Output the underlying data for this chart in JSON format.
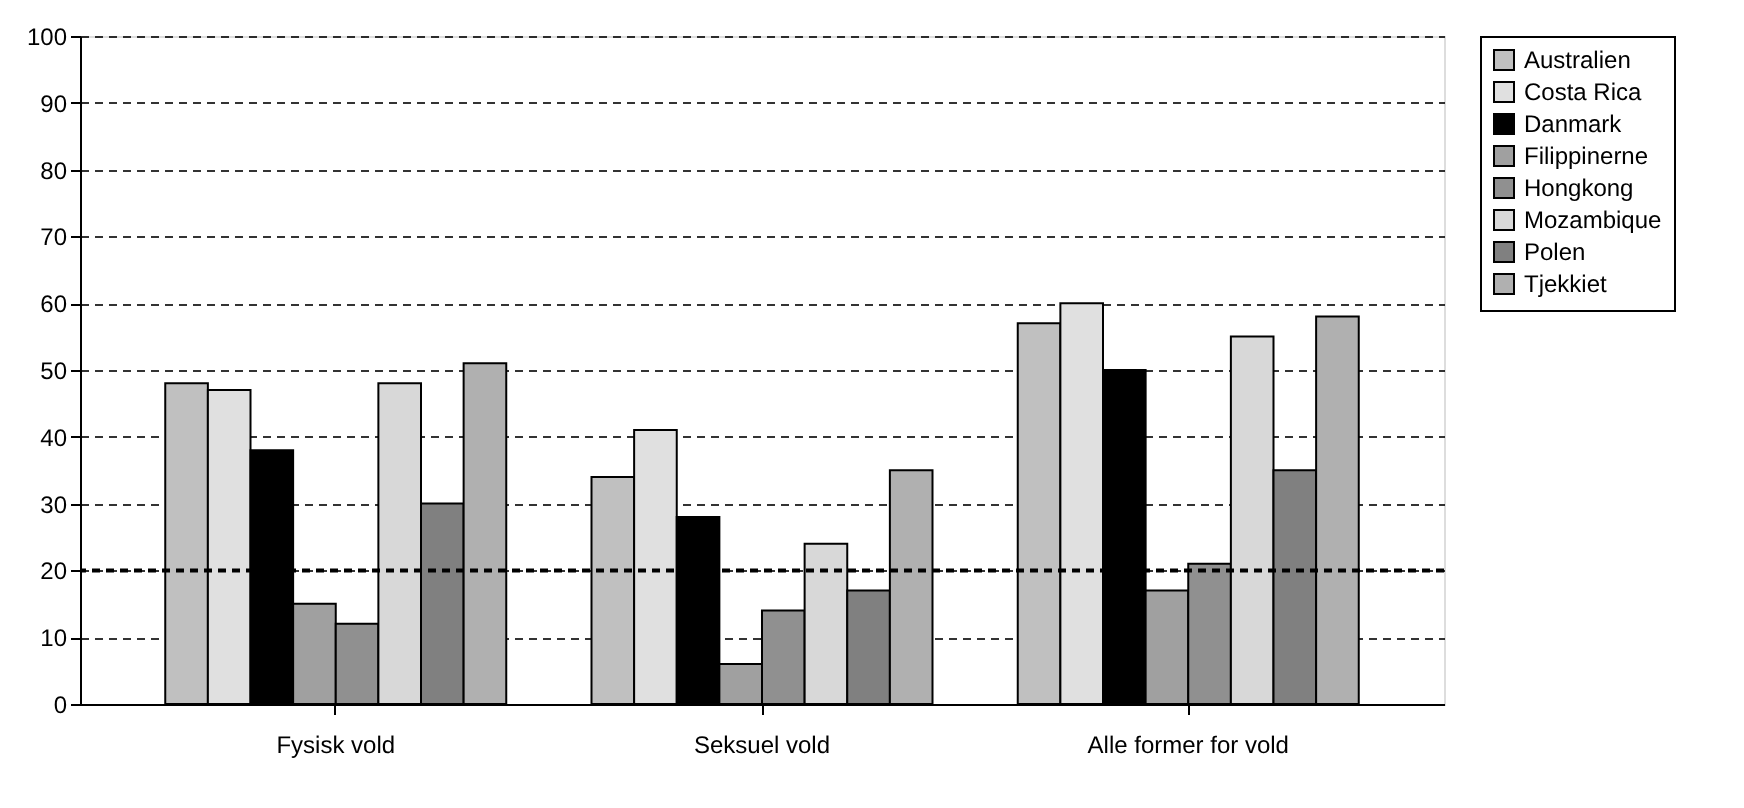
{
  "chart_data": {
    "type": "bar",
    "categories": [
      "Fysisk vold",
      "Seksuel vold",
      "Alle former for vold"
    ],
    "series": [
      {
        "name": "Australien",
        "color": "#c0c0c0",
        "values": [
          48,
          34,
          57
        ]
      },
      {
        "name": "Costa Rica",
        "color": "#e0e0e0",
        "values": [
          47,
          41,
          60
        ]
      },
      {
        "name": "Danmark",
        "color": "#000000",
        "values": [
          38,
          28,
          50
        ]
      },
      {
        "name": "Filippinerne",
        "color": "#a0a0a0",
        "values": [
          15,
          6,
          17
        ]
      },
      {
        "name": "Hongkong",
        "color": "#909090",
        "values": [
          12,
          14,
          21
        ]
      },
      {
        "name": "Mozambique",
        "color": "#d8d8d8",
        "values": [
          48,
          24,
          55
        ]
      },
      {
        "name": "Polen",
        "color": "#808080",
        "values": [
          30,
          17,
          35
        ]
      },
      {
        "name": "Tjekkiet",
        "color": "#b0b0b0",
        "values": [
          51,
          35,
          58
        ]
      }
    ],
    "ylim": [
      0,
      100
    ],
    "yticks": [
      0,
      10,
      20,
      30,
      40,
      50,
      60,
      70,
      80,
      90,
      100
    ],
    "grid": "y",
    "legend": "right",
    "ref_lines": [
      {
        "axis": "y",
        "value": 20,
        "color": "#000000",
        "line_style": "dashed"
      }
    ]
  }
}
